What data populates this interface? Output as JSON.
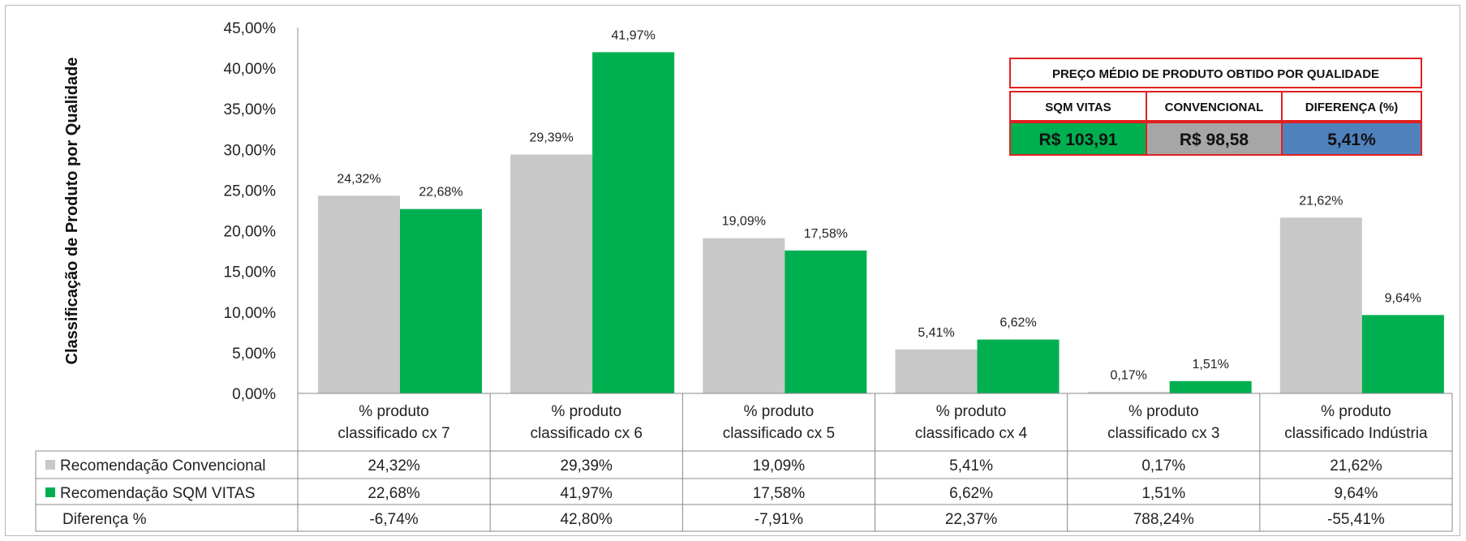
{
  "chart_data": {
    "type": "bar",
    "ylabel": "Classificação de Produto por Qualidade",
    "ylim": [
      0,
      45
    ],
    "yticks": [
      "0,00%",
      "5,00%",
      "10,00%",
      "15,00%",
      "20,00%",
      "25,00%",
      "30,00%",
      "35,00%",
      "40,00%",
      "45,00%"
    ],
    "categories": [
      [
        "% produto",
        "classificado cx 7"
      ],
      [
        "% produto",
        "classificado cx 6"
      ],
      [
        "% produto",
        "classificado cx 5"
      ],
      [
        "% produto",
        "classificado cx 4"
      ],
      [
        "% produto",
        "classificado cx 3"
      ],
      [
        "% produto",
        "classificado Indústria"
      ]
    ],
    "series": [
      {
        "name": "Recomendação Convencional",
        "color": "#c8c8c8",
        "values": [
          24.32,
          29.39,
          19.09,
          5.41,
          0.17,
          21.62
        ],
        "labels": [
          "24,32%",
          "29,39%",
          "19,09%",
          "5,41%",
          "0,17%",
          "21,62%"
        ]
      },
      {
        "name": "Recomendação SQM VITAS",
        "color": "#00b050",
        "values": [
          22.68,
          41.97,
          17.58,
          6.62,
          1.51,
          9.64
        ],
        "labels": [
          "22,68%",
          "41,97%",
          "17,58%",
          "6,62%",
          "1,51%",
          "9,64%"
        ]
      }
    ],
    "diff_row": {
      "name": "Diferença %",
      "labels": [
        "-6,74%",
        "42,80%",
        "-7,91%",
        "22,37%",
        "788,24%",
        "-55,41%"
      ]
    },
    "legend": "data-table"
  },
  "price_table": {
    "title": "PREÇO MÉDIO DE PRODUTO OBTIDO POR QUALIDADE",
    "headers": [
      "SQM VITAS",
      "CONVENCIONAL",
      "DIFERENÇA (%)"
    ],
    "values": [
      "R$ 103,91",
      "R$ 98,58",
      "5,41%"
    ],
    "colors": [
      "#00b050",
      "#a6a6a6",
      "#4f81bd"
    ],
    "border_color": "#e02020"
  }
}
